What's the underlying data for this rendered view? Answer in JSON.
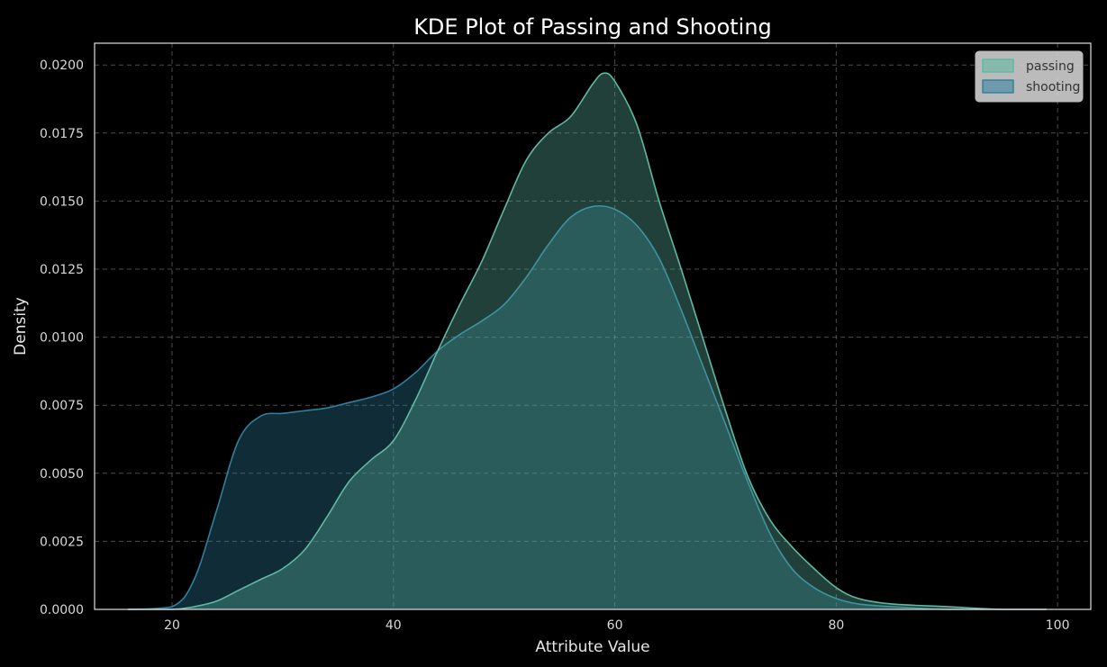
{
  "chart_data": {
    "type": "area",
    "title": "KDE Plot of Passing and Shooting",
    "xlabel": "Attribute Value",
    "ylabel": "Density",
    "xlim": [
      13,
      103
    ],
    "ylim": [
      0,
      0.0208
    ],
    "xticks": [
      20,
      40,
      60,
      80,
      100
    ],
    "xtick_labels": [
      "20",
      "40",
      "60",
      "80",
      "100"
    ],
    "yticks": [
      0.0,
      0.0025,
      0.005,
      0.0075,
      0.01,
      0.0125,
      0.015,
      0.0175,
      0.02
    ],
    "ytick_labels": [
      "0.0000",
      "0.0025",
      "0.0050",
      "0.0075",
      "0.0100",
      "0.0125",
      "0.0150",
      "0.0175",
      "0.0200"
    ],
    "grid": true,
    "legend_position": "top-right",
    "series": [
      {
        "name": "shooting",
        "color": "#2f7f9e",
        "x": [
          16,
          20,
          22,
          24,
          26,
          28,
          30,
          32,
          34,
          36,
          38,
          40,
          42,
          44,
          46,
          48,
          50,
          52,
          54,
          56,
          58,
          60,
          62,
          64,
          66,
          68,
          70,
          72,
          74,
          76,
          78,
          80,
          82,
          85,
          90,
          95,
          99
        ],
        "y": [
          0.0,
          0.0001,
          0.0011,
          0.0036,
          0.0062,
          0.0071,
          0.0072,
          0.0073,
          0.0074,
          0.0076,
          0.0078,
          0.0081,
          0.0087,
          0.0095,
          0.0101,
          0.0106,
          0.0112,
          0.0122,
          0.0134,
          0.0144,
          0.0148,
          0.0147,
          0.0141,
          0.0129,
          0.011,
          0.0089,
          0.0068,
          0.0047,
          0.0028,
          0.0015,
          0.0008,
          0.0004,
          0.0002,
          0.0001,
          0.0,
          0.0,
          0.0
        ]
      },
      {
        "name": "passing",
        "color": "#5fb8a3",
        "x": [
          16,
          20,
          22,
          24,
          26,
          28,
          30,
          32,
          34,
          36,
          38,
          40,
          42,
          44,
          46,
          48,
          50,
          52,
          54,
          56,
          58,
          59,
          60,
          62,
          64,
          66,
          68,
          70,
          72,
          74,
          76,
          78,
          80,
          82,
          85,
          90,
          95,
          99
        ],
        "y": [
          0.0,
          0.0,
          0.0001,
          0.0003,
          0.0007,
          0.0011,
          0.0015,
          0.0022,
          0.0034,
          0.0047,
          0.0055,
          0.0062,
          0.0077,
          0.0095,
          0.0112,
          0.0128,
          0.0147,
          0.0165,
          0.0175,
          0.0181,
          0.0193,
          0.0197,
          0.0194,
          0.0178,
          0.015,
          0.0125,
          0.0099,
          0.0073,
          0.0049,
          0.0033,
          0.0023,
          0.0015,
          0.0008,
          0.0004,
          0.0002,
          0.0001,
          0.0,
          0.0
        ]
      }
    ]
  }
}
